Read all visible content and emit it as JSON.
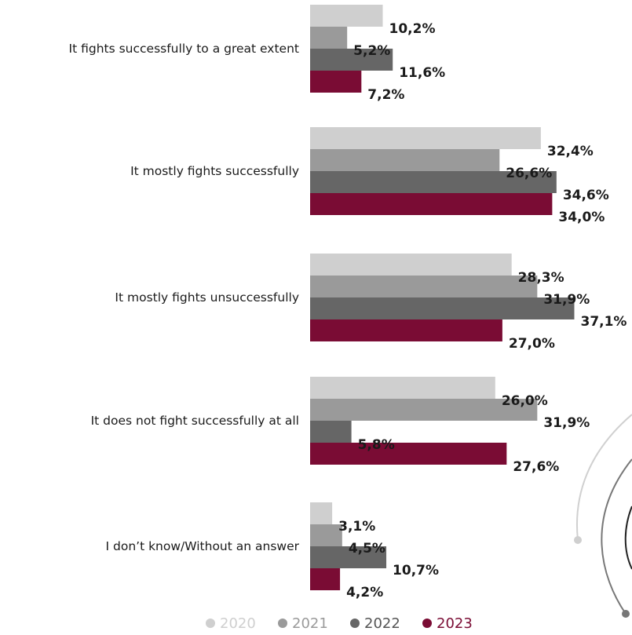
{
  "chart_data": {
    "type": "bar",
    "orientation": "horizontal",
    "categories": [
      "It fights successfully to a great extent",
      "It mostly fights successfully",
      "It mostly fights unsuccessfully",
      "It does not fight successfully at all",
      "I don’t know/Without an answer"
    ],
    "series": [
      {
        "name": "2020",
        "color": "#cfcfcf",
        "values": [
          10.2,
          32.4,
          28.3,
          26.0,
          3.1
        ],
        "labels": [
          "10,2%",
          "32,4%",
          "28,3%",
          "26,0%",
          "3,1%"
        ]
      },
      {
        "name": "2021",
        "color": "#9a9a9a",
        "values": [
          5.2,
          26.6,
          31.9,
          31.9,
          4.5
        ],
        "labels": [
          "5,2%",
          "26,6%",
          "31,9%",
          "31,9%",
          "4,5%"
        ]
      },
      {
        "name": "2022",
        "color": "#666666",
        "values": [
          11.6,
          34.6,
          37.1,
          5.8,
          10.7
        ],
        "labels": [
          "11,6%",
          "34,6%",
          "37,1%",
          "5,8%",
          "10,7%"
        ]
      },
      {
        "name": "2023",
        "color": "#7a0c34",
        "values": [
          7.2,
          34.0,
          27.0,
          27.6,
          4.2
        ],
        "labels": [
          "7,2%",
          "34,0%",
          "27,0%",
          "27,6%",
          "4,2%"
        ]
      }
    ],
    "legend": {
      "position": "bottom",
      "text_colors": [
        "#cfcfcf",
        "#9a9a9a",
        "#555555",
        "#7a0c34"
      ]
    },
    "xlim": [
      0,
      40
    ],
    "grid": false
  }
}
